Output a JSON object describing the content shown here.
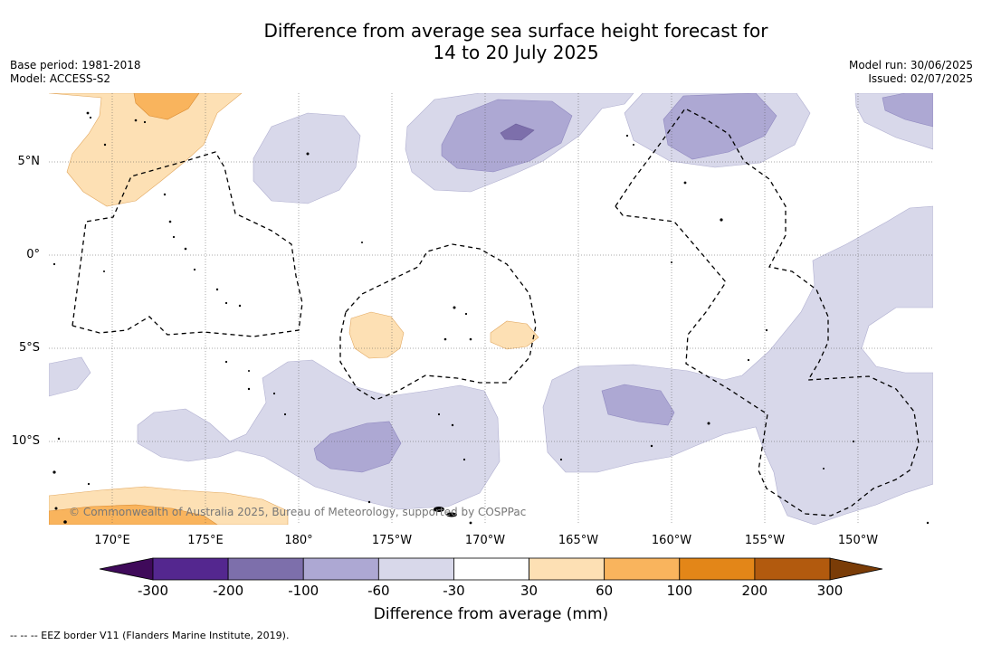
{
  "title_line1": "Difference from average sea surface height forecast for",
  "title_line2": "14 to 20 July 2025",
  "meta_left": {
    "base_period": "Base period: 1981-2018",
    "model": "Model: ACCESS-S2"
  },
  "meta_right": {
    "model_run": "Model run: 30/06/2025",
    "issued": "Issued: 02/07/2025"
  },
  "lat_labels": [
    "5°N",
    "0°",
    "5°S",
    "10°S"
  ],
  "lon_labels": [
    "170°E",
    "175°E",
    "180°",
    "175°W",
    "170°W",
    "165°W",
    "160°W",
    "155°W",
    "150°W"
  ],
  "credit": "© Commonwealth of Australia 2025, Bureau of Meteorology, supported by COSPPac",
  "colorbar": {
    "title": "Difference from average (mm)",
    "ticks": [
      "-300",
      "-200",
      "-100",
      "-60",
      "-30",
      "30",
      "60",
      "100",
      "200",
      "300"
    ],
    "colors": [
      "#3f0a5a",
      "#54278f",
      "#7d6fab",
      "#ada8d3",
      "#d8d8ea",
      "#ffffff",
      "#fde0b4",
      "#f9b45d",
      "#e38618",
      "#b25a0e",
      "#7a3c07"
    ]
  },
  "footnote": "--  --  -- EEZ border V11 (Flanders Marine Institute, 2019)."
}
